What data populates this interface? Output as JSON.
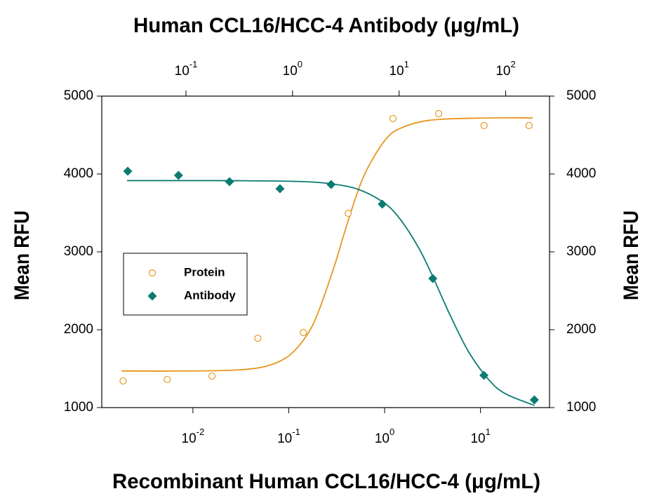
{
  "chart_data": {
    "type": "scatter",
    "x_label": "Recombinant Human CCL16/HCC-4 (μg/mL)",
    "x2_label": "Human CCL16/HCC-4 Antibody (μg/mL)",
    "y_label": "Mean RFU",
    "y2_label": "Mean RFU",
    "xscale": "log",
    "x2scale": "log",
    "xlim": [
      0.00112,
      52.5
    ],
    "x2lim": [
      0.0162,
      258
    ],
    "ylim": [
      1000,
      5000
    ],
    "y2lim": [
      1000,
      5000
    ],
    "xticks": [
      {
        "value": 0.01,
        "label": "10",
        "exponent": "-2"
      },
      {
        "value": 0.1,
        "label": "10",
        "exponent": "-1"
      },
      {
        "value": 1,
        "label": "10",
        "exponent": "0"
      },
      {
        "value": 10,
        "label": "10",
        "exponent": "1"
      }
    ],
    "x2ticks": [
      {
        "value": 0.1,
        "label": "10",
        "exponent": "-1"
      },
      {
        "value": 1,
        "label": "10",
        "exponent": "0"
      },
      {
        "value": 10,
        "label": "10",
        "exponent": "1"
      },
      {
        "value": 100,
        "label": "10",
        "exponent": "2"
      }
    ],
    "yticks": [
      1000,
      2000,
      3000,
      4000,
      5000
    ],
    "y2ticks": [
      1000,
      2000,
      3000,
      4000,
      5000
    ],
    "legend": "middle-left",
    "series": [
      {
        "name": "Protein",
        "color": "#e8961e",
        "marker": "open-circle",
        "xaxis": "x",
        "x": [
          0.00187,
          0.0054,
          0.0158,
          0.0475,
          0.142,
          0.417,
          1.22,
          3.66,
          10.9,
          32.1
        ],
        "values": [
          1342,
          1360,
          1405,
          1890,
          1964,
          3495,
          4712,
          4775,
          4622,
          4622
        ],
        "fit": {
          "x": [
            0.0018,
            0.01,
            0.03,
            0.06,
            0.1,
            0.15,
            0.2,
            0.3,
            0.4,
            0.6,
            1,
            1.5,
            3,
            10,
            35
          ],
          "values": [
            1470,
            1470,
            1484,
            1536,
            1665,
            1907,
            2205,
            2824,
            3331,
            3960,
            4427,
            4593,
            4691,
            4718,
            4720
          ]
        }
      },
      {
        "name": "Antibody",
        "color": "#0b7b72",
        "marker": "diamond",
        "xaxis": "x2",
        "x": [
          0.0284,
          0.085,
          0.256,
          0.762,
          2.3,
          6.95,
          20.7,
          62.5,
          186
        ],
        "values": [
          4036,
          3982,
          3901,
          3811,
          3865,
          3613,
          2658,
          1414,
          1099
        ],
        "fit": {
          "x": [
            0.028,
            0.1,
            0.3,
            1,
            2,
            4,
            7,
            10,
            15,
            20,
            30,
            45,
            70,
            100,
            186
          ],
          "values": [
            3915,
            3915,
            3914,
            3906,
            3884,
            3809,
            3643,
            3437,
            3069,
            2727,
            2191,
            1714,
            1352,
            1176,
            1028
          ]
        }
      }
    ]
  }
}
